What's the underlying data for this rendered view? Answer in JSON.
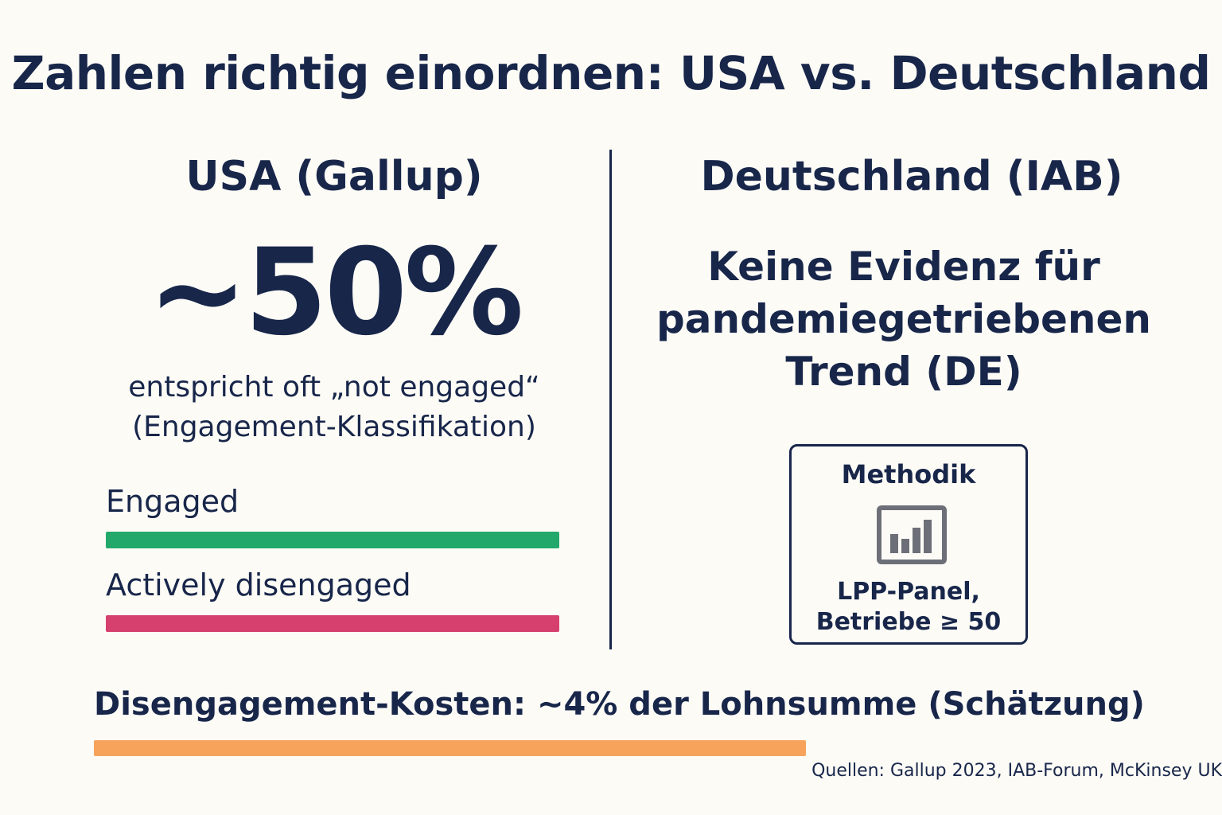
{
  "title": "Zahlen richtig einordnen: USA vs. Deutschland",
  "usa": {
    "heading": "USA (Gallup)",
    "stat": "~50%",
    "caption_line1": "entspricht oft „not engaged“",
    "caption_line2": "(Engagement-Klassifikation)",
    "bars": [
      {
        "label": "Engaged",
        "color": "#22a86b"
      },
      {
        "label": "Actively disengaged",
        "color": "#d6406f"
      }
    ]
  },
  "germany": {
    "heading": "Deutschland (IAB)",
    "statement_line1": "Keine Evidenz für",
    "statement_line2": "pandemiegetriebenen",
    "statement_line3": "Trend (DE)",
    "method": {
      "title": "Methodik",
      "icon": "bar-chart-icon",
      "line1": "LPP-Panel,",
      "line2": "Betriebe ≥ 50"
    }
  },
  "cost": {
    "label": "Disengagement-Kosten: ~4% der Lohnsumme (Schätzung)",
    "color": "#f7a35c"
  },
  "sources": "Quellen: Gallup 2023, IAB-Forum, McKinsey UK",
  "colors": {
    "text": "#18264a",
    "background": "#fcfbf6"
  }
}
